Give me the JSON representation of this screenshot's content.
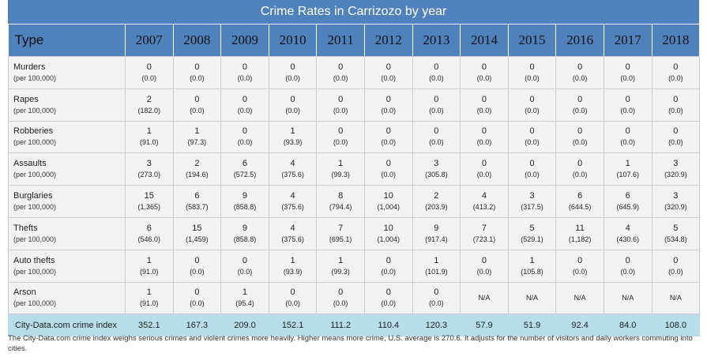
{
  "title": "Crime Rates in Carrizozo by year",
  "header": {
    "type_label": "Type",
    "years": [
      "2007",
      "2008",
      "2009",
      "2010",
      "2011",
      "2012",
      "2013",
      "2014",
      "2015",
      "2016",
      "2017",
      "2018"
    ]
  },
  "rate_unit": "(per 100,000)",
  "rows": [
    {
      "label": "Murders",
      "cells": [
        [
          "0",
          "(0.0)"
        ],
        [
          "0",
          "(0.0)"
        ],
        [
          "0",
          "(0.0)"
        ],
        [
          "0",
          "(0.0)"
        ],
        [
          "0",
          "(0.0)"
        ],
        [
          "0",
          "(0.0)"
        ],
        [
          "0",
          "(0.0)"
        ],
        [
          "0",
          "(0.0)"
        ],
        [
          "0",
          "(0.0)"
        ],
        [
          "0",
          "(0.0)"
        ],
        [
          "0",
          "(0.0)"
        ],
        [
          "0",
          "(0.0)"
        ]
      ]
    },
    {
      "label": "Rapes",
      "cells": [
        [
          "2",
          "(182.0)"
        ],
        [
          "0",
          "(0.0)"
        ],
        [
          "0",
          "(0.0)"
        ],
        [
          "0",
          "(0.0)"
        ],
        [
          "0",
          "(0.0)"
        ],
        [
          "0",
          "(0.0)"
        ],
        [
          "0",
          "(0.0)"
        ],
        [
          "0",
          "(0.0)"
        ],
        [
          "0",
          "(0.0)"
        ],
        [
          "0",
          "(0.0)"
        ],
        [
          "0",
          "(0.0)"
        ],
        [
          "0",
          "(0.0)"
        ]
      ]
    },
    {
      "label": "Robberies",
      "cells": [
        [
          "1",
          "(91.0)"
        ],
        [
          "1",
          "(97.3)"
        ],
        [
          "0",
          "(0.0)"
        ],
        [
          "1",
          "(93.9)"
        ],
        [
          "0",
          "(0.0)"
        ],
        [
          "0",
          "(0.0)"
        ],
        [
          "0",
          "(0.0)"
        ],
        [
          "0",
          "(0.0)"
        ],
        [
          "0",
          "(0.0)"
        ],
        [
          "0",
          "(0.0)"
        ],
        [
          "0",
          "(0.0)"
        ],
        [
          "0",
          "(0.0)"
        ]
      ]
    },
    {
      "label": "Assaults",
      "cells": [
        [
          "3",
          "(273.0)"
        ],
        [
          "2",
          "(194.6)"
        ],
        [
          "6",
          "(572.5)"
        ],
        [
          "4",
          "(375.6)"
        ],
        [
          "1",
          "(99.3)"
        ],
        [
          "0",
          "(0.0)"
        ],
        [
          "3",
          "(305.8)"
        ],
        [
          "0",
          "(0.0)"
        ],
        [
          "0",
          "(0.0)"
        ],
        [
          "0",
          "(0.0)"
        ],
        [
          "1",
          "(107.6)"
        ],
        [
          "3",
          "(320.9)"
        ]
      ]
    },
    {
      "label": "Burglaries",
      "cells": [
        [
          "15",
          "(1,365)"
        ],
        [
          "6",
          "(583.7)"
        ],
        [
          "9",
          "(858.8)"
        ],
        [
          "4",
          "(375.6)"
        ],
        [
          "8",
          "(794.4)"
        ],
        [
          "10",
          "(1,004)"
        ],
        [
          "2",
          "(203.9)"
        ],
        [
          "4",
          "(413.2)"
        ],
        [
          "3",
          "(317.5)"
        ],
        [
          "6",
          "(644.5)"
        ],
        [
          "6",
          "(645.9)"
        ],
        [
          "3",
          "(320.9)"
        ]
      ]
    },
    {
      "label": "Thefts",
      "cells": [
        [
          "6",
          "(546.0)"
        ],
        [
          "15",
          "(1,459)"
        ],
        [
          "9",
          "(858.8)"
        ],
        [
          "4",
          "(375.6)"
        ],
        [
          "7",
          "(695.1)"
        ],
        [
          "10",
          "(1,004)"
        ],
        [
          "9",
          "(917.4)"
        ],
        [
          "7",
          "(723.1)"
        ],
        [
          "5",
          "(529.1)"
        ],
        [
          "11",
          "(1,182)"
        ],
        [
          "4",
          "(430.6)"
        ],
        [
          "5",
          "(534.8)"
        ]
      ]
    },
    {
      "label": "Auto thefts",
      "cells": [
        [
          "1",
          "(91.0)"
        ],
        [
          "0",
          "(0.0)"
        ],
        [
          "0",
          "(0.0)"
        ],
        [
          "1",
          "(93.9)"
        ],
        [
          "1",
          "(99.3)"
        ],
        [
          "0",
          "(0.0)"
        ],
        [
          "1",
          "(101.9)"
        ],
        [
          "0",
          "(0.0)"
        ],
        [
          "1",
          "(105.8)"
        ],
        [
          "0",
          "(0.0)"
        ],
        [
          "0",
          "(0.0)"
        ],
        [
          "0",
          "(0.0)"
        ]
      ]
    },
    {
      "label": "Arson",
      "cells": [
        [
          "1",
          "(91.0)"
        ],
        [
          "0",
          "(0.0)"
        ],
        [
          "1",
          "(95.4)"
        ],
        [
          "0",
          "(0.0)"
        ],
        [
          "0",
          "(0.0)"
        ],
        [
          "0",
          "(0.0)"
        ],
        [
          "0",
          "(0.0)"
        ],
        [
          "N/A",
          ""
        ],
        [
          "N/A",
          ""
        ],
        [
          "N/A",
          ""
        ],
        [
          "N/A",
          ""
        ],
        [
          "N/A",
          ""
        ]
      ]
    }
  ],
  "index_row": {
    "label": "City-Data.com crime index",
    "values": [
      "352.1",
      "167.3",
      "209.0",
      "152.1",
      "111.2",
      "110.4",
      "120.3",
      "57.9",
      "51.9",
      "92.4",
      "84.0",
      "108.0"
    ]
  },
  "footnote": "The City-Data.com crime index weighs serious crimes and violent crimes more heavily. Higher means more crime, U.S. average is 270.6. It adjusts for the number of visitors and daily workers commuting into cities."
}
